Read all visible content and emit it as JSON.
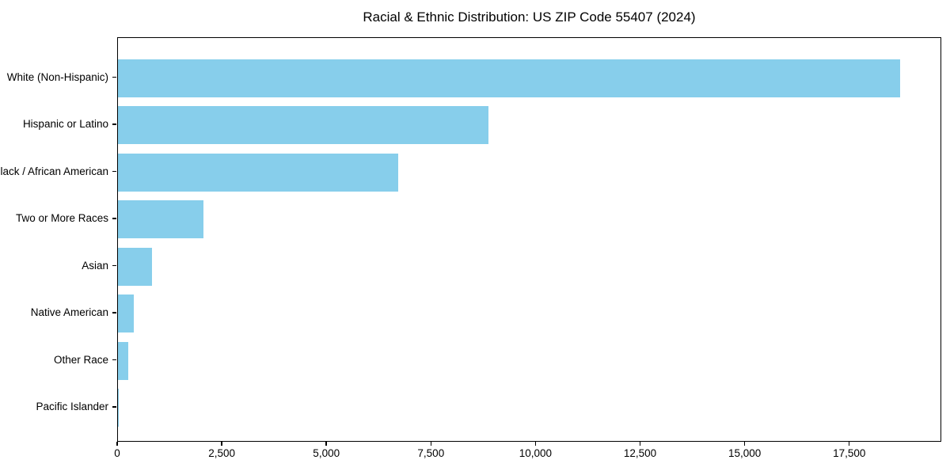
{
  "title": "Racial & Ethnic Distribution: US ZIP Code 55407 (2024)",
  "chart_data": {
    "type": "bar",
    "orientation": "horizontal",
    "title": "Racial & Ethnic Distribution: US ZIP Code 55407 (2024)",
    "categories": [
      "White (Non-Hispanic)",
      "Hispanic or Latino",
      "Black / African American",
      "Two or More Races",
      "Asian",
      "Native American",
      "Other Race",
      "Pacific Islander"
    ],
    "values": [
      18700,
      8850,
      6700,
      2050,
      810,
      370,
      240,
      10
    ],
    "xlabel": "",
    "ylabel": "",
    "xlim": [
      0,
      19700
    ],
    "xticks": [
      0,
      2500,
      5000,
      7500,
      10000,
      12500,
      15000,
      17500
    ],
    "xtick_labels": [
      "0",
      "2,500",
      "5,000",
      "7,500",
      "10,000",
      "12,500",
      "15,000",
      "17,500"
    ],
    "bar_color": "#87CEEB",
    "background_color": "#ffffff",
    "spine_color": "#000000",
    "grid": false,
    "legend": "none"
  }
}
